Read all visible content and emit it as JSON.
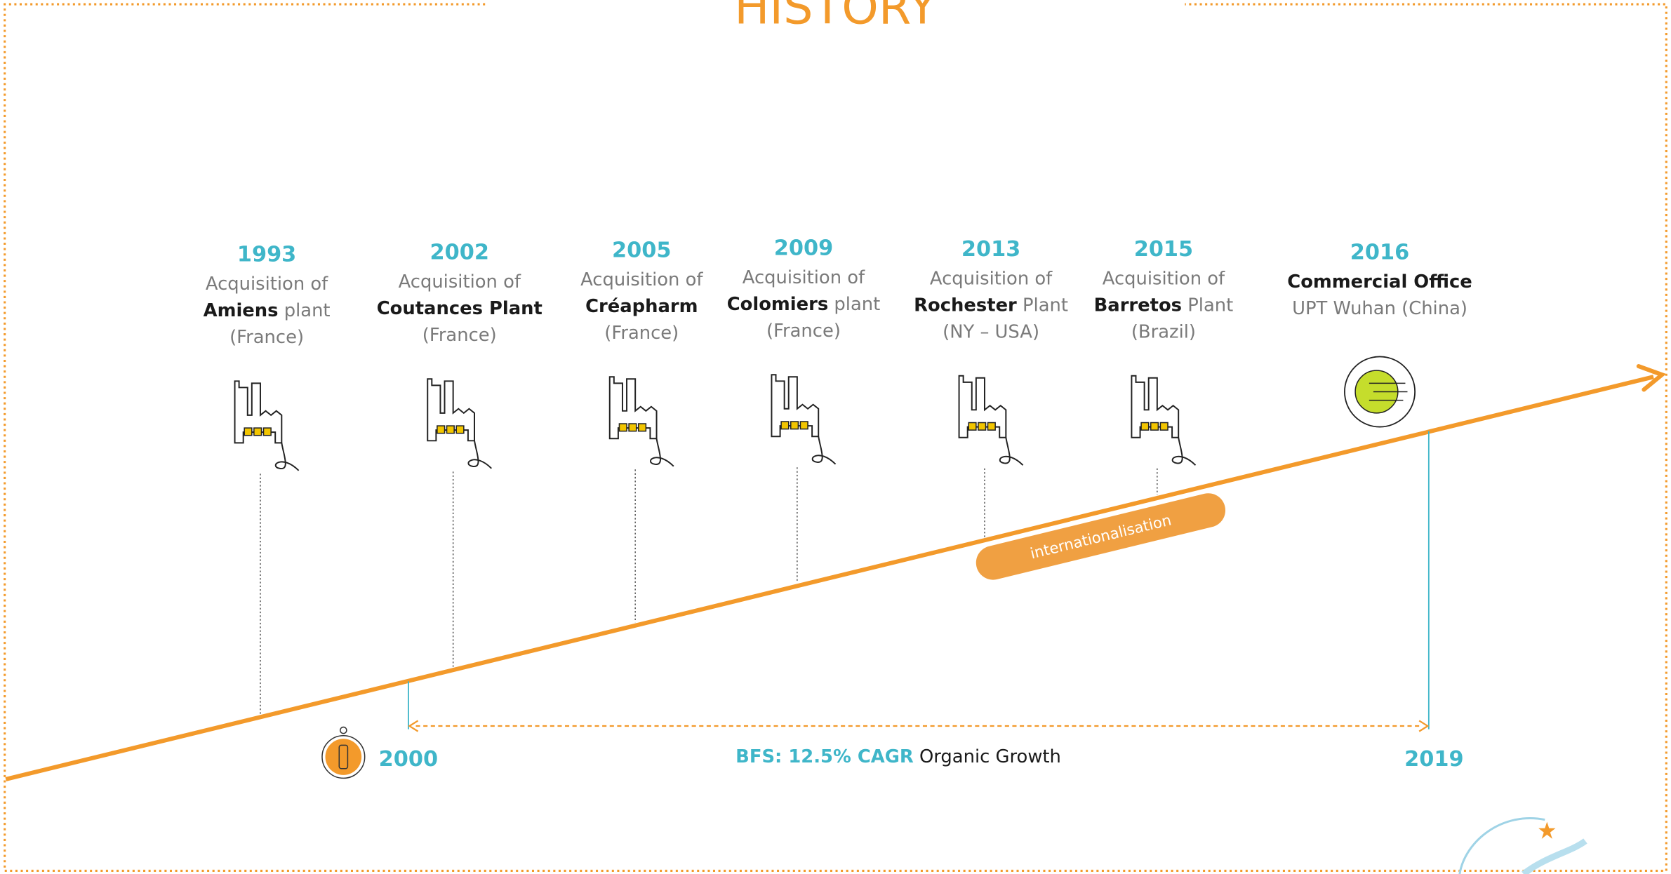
{
  "title": "HISTORY",
  "events": [
    {
      "year": "1993",
      "lines": [
        [
          {
            "text": "Acquisition of"
          }
        ],
        [
          {
            "text": "Amiens",
            "bold": true
          },
          {
            "text": " plant"
          }
        ],
        [
          {
            "text": "(France)"
          }
        ]
      ]
    },
    {
      "year": "2002",
      "lines": [
        [
          {
            "text": "Acquisition of"
          }
        ],
        [
          {
            "text": "Coutances Plant",
            "bold": true
          }
        ],
        [
          {
            "text": "(France)"
          }
        ]
      ]
    },
    {
      "year": "2005",
      "lines": [
        [
          {
            "text": "Acquisition of"
          }
        ],
        [
          {
            "text": "Créapharm",
            "bold": true
          }
        ],
        [
          {
            "text": "(France)"
          }
        ]
      ]
    },
    {
      "year": "2009",
      "lines": [
        [
          {
            "text": "Acquisition of"
          }
        ],
        [
          {
            "text": "Colomiers",
            "bold": true
          },
          {
            "text": " plant"
          }
        ],
        [
          {
            "text": "(France)"
          }
        ]
      ]
    },
    {
      "year": "2013",
      "lines": [
        [
          {
            "text": "Acquisition of"
          }
        ],
        [
          {
            "text": "Rochester",
            "bold": true
          },
          {
            "text": " Plant"
          }
        ],
        [
          {
            "text": "(NY – USA)"
          }
        ]
      ]
    },
    {
      "year": "2015",
      "lines": [
        [
          {
            "text": "Acquisition of"
          }
        ],
        [
          {
            "text": "Barretos",
            "bold": true
          },
          {
            "text": " Plant"
          }
        ],
        [
          {
            "text": "(Brazil)"
          }
        ]
      ]
    },
    {
      "year": "2016",
      "lines": [
        [
          {
            "text": "Commercial Office",
            "bold": true
          }
        ],
        [
          {
            "text": "UPT Wuhan (China)"
          }
        ]
      ]
    }
  ],
  "pill": "internationalisation",
  "start_year": "2000",
  "end_year": "2019",
  "growth": {
    "highlight": "BFS: 12.5% CAGR",
    "text": "Organic Growth"
  }
}
